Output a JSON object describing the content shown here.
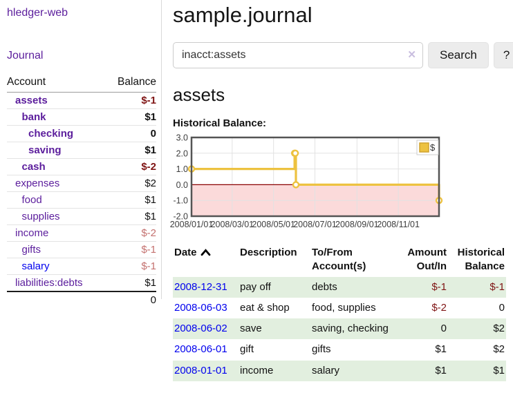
{
  "brand": "hledger-web",
  "nav": {
    "journal": "Journal"
  },
  "sidebar": {
    "header": {
      "account": "Account",
      "balance": "Balance"
    },
    "accounts": [
      {
        "name": "assets",
        "balance": "$-1",
        "indent": 1,
        "bold": true,
        "neg": "strong",
        "link": "purple"
      },
      {
        "name": "bank",
        "balance": "$1",
        "indent": 2,
        "bold": true,
        "neg": null,
        "link": "purple"
      },
      {
        "name": "checking",
        "balance": "0",
        "indent": 3,
        "bold": true,
        "neg": null,
        "link": "purple"
      },
      {
        "name": "saving",
        "balance": "$1",
        "indent": 3,
        "bold": true,
        "neg": null,
        "link": "purple"
      },
      {
        "name": "cash",
        "balance": "$-2",
        "indent": 2,
        "bold": true,
        "neg": "strong",
        "link": "purple"
      },
      {
        "name": "expenses",
        "balance": "$2",
        "indent": 1,
        "bold": false,
        "neg": null,
        "link": "purple"
      },
      {
        "name": "food",
        "balance": "$1",
        "indent": 2,
        "bold": false,
        "neg": null,
        "link": "purple"
      },
      {
        "name": "supplies",
        "balance": "$1",
        "indent": 2,
        "bold": false,
        "neg": null,
        "link": "purple"
      },
      {
        "name": "income",
        "balance": "$-2",
        "indent": 1,
        "bold": false,
        "neg": "soft",
        "link": "purple"
      },
      {
        "name": "gifts",
        "balance": "$-1",
        "indent": 2,
        "bold": false,
        "neg": "soft",
        "link": "purple"
      },
      {
        "name": "salary",
        "balance": "$-1",
        "indent": 2,
        "bold": false,
        "neg": "soft",
        "link": "blue"
      },
      {
        "name": "liabilities:debts",
        "balance": "$1",
        "indent": 1,
        "bold": false,
        "neg": null,
        "link": "purple"
      }
    ],
    "total": "0"
  },
  "main": {
    "title": "sample.journal",
    "search": {
      "value": "inacct:assets",
      "clear": "✕",
      "submit": "Search",
      "help": "?"
    },
    "heading": "assets",
    "chart_title": "Historical Balance:"
  },
  "chart_data": {
    "type": "line",
    "step": true,
    "title": "Historical Balance:",
    "x_range": [
      "2008-01-01",
      "2008-12-31"
    ],
    "ylim": [
      -2.0,
      3.0
    ],
    "yticks": [
      "3.0",
      "2.0",
      "1.0",
      "0.0",
      "-1.0",
      "-2.0"
    ],
    "xticks": [
      "2008/01/01",
      "2008/03/01",
      "2008/05/01",
      "2008/07/01",
      "2008/09/01",
      "2008/11/01"
    ],
    "series": [
      {
        "name": "$",
        "color": "#edc240",
        "points": [
          [
            "2008-01-01",
            1
          ],
          [
            "2008-06-01",
            2
          ],
          [
            "2008-06-02",
            2
          ],
          [
            "2008-06-03",
            0
          ],
          [
            "2008-12-31",
            -1
          ]
        ]
      }
    ],
    "legend_position": "top-right",
    "negative_fill": "#fbdada",
    "zero_line_color": "#8b0000",
    "grid_color": "#e2e2e2",
    "border_color": "#545454",
    "tick_color": "#3d3d3d"
  },
  "register": {
    "headers": {
      "date": "Date",
      "description": "Description",
      "accounts": "To/From Account(s)",
      "amount": "Amount Out/In",
      "balance": "Historical Balance"
    },
    "rows": [
      {
        "date": "2008-12-31",
        "description": "pay off",
        "accounts": "debts",
        "amount": "$-1",
        "amount_neg": true,
        "balance": "$-1",
        "balance_neg": true
      },
      {
        "date": "2008-06-03",
        "description": "eat & shop",
        "accounts": "food, supplies",
        "amount": "$-2",
        "amount_neg": true,
        "balance": "0",
        "balance_neg": false
      },
      {
        "date": "2008-06-02",
        "description": "save",
        "accounts": "saving, checking",
        "amount": "0",
        "amount_neg": false,
        "balance": "$2",
        "balance_neg": false
      },
      {
        "date": "2008-06-01",
        "description": "gift",
        "accounts": "gifts",
        "amount": "$1",
        "amount_neg": false,
        "balance": "$2",
        "balance_neg": false
      },
      {
        "date": "2008-01-01",
        "description": "income",
        "accounts": "salary",
        "amount": "$1",
        "amount_neg": false,
        "balance": "$1",
        "balance_neg": false
      }
    ]
  },
  "colors": {
    "link_purple": "#5b1d9c",
    "link_blue": "#0000ee",
    "negative_strong": "#7f1414",
    "negative_soft": "#c4716f",
    "row_stripe_green": "#e2efdf",
    "series_gold": "#edc240"
  }
}
